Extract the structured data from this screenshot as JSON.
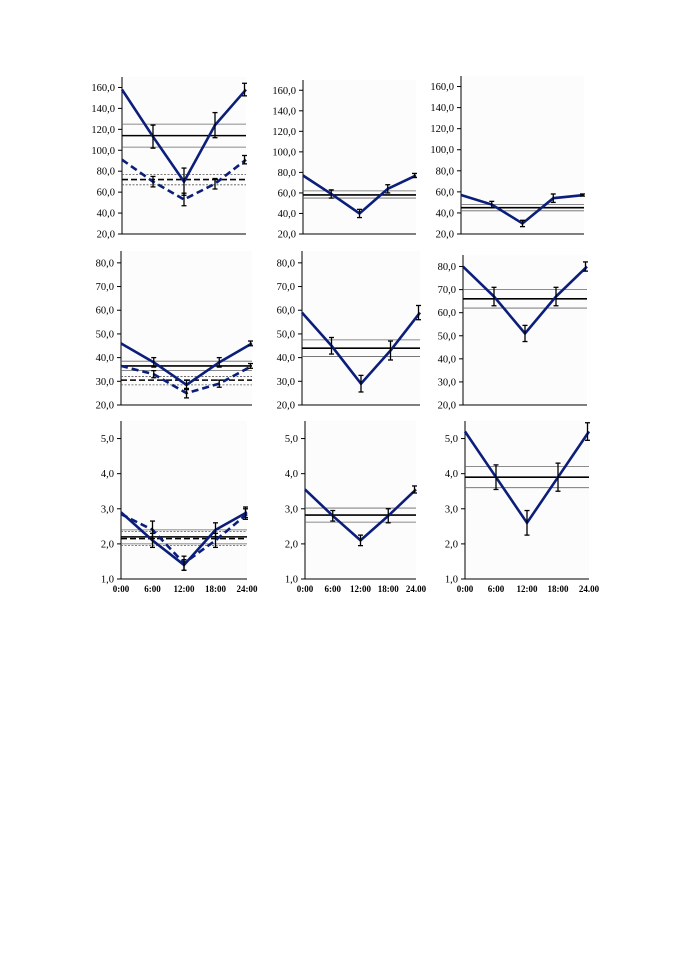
{
  "chart_data": [
    {
      "type": "line",
      "ylim": [
        20,
        170
      ],
      "yticks": [
        "20,0",
        "40,0",
        "60,0",
        "80,0",
        "100,0",
        "120,0",
        "140,0",
        "160,0"
      ],
      "x": [
        "0:00",
        "6:00",
        "12:00",
        "18:00",
        "24:00"
      ],
      "show_xticks": false,
      "series": [
        {
          "style": "solid",
          "values": [
            158,
            113,
            70,
            124,
            158
          ],
          "err": [
            0,
            11,
            13,
            12,
            6
          ]
        },
        {
          "style": "dashed",
          "values": [
            91,
            70,
            53,
            68,
            91
          ],
          "err": [
            0,
            5,
            6,
            5,
            4
          ]
        }
      ],
      "mesor": [
        {
          "style": "solid",
          "value": 114,
          "band": [
            103,
            125
          ]
        },
        {
          "style": "dashed",
          "value": 72,
          "band": [
            67,
            77
          ]
        }
      ]
    },
    {
      "type": "line",
      "ylim": [
        20,
        170
      ],
      "yticks": [
        "20,0",
        "40,0",
        "60,0",
        "80,0",
        "100,0",
        "120,0",
        "140,0",
        "160,0"
      ],
      "x": [
        "0:00",
        "6:00",
        "12:00",
        "18:00",
        "24:00"
      ],
      "show_xticks": false,
      "series": [
        {
          "style": "solid",
          "values": [
            77,
            59,
            40,
            64,
            77
          ],
          "err": [
            0,
            4,
            4,
            4,
            2
          ]
        }
      ],
      "mesor": [
        {
          "style": "solid",
          "value": 58,
          "band": [
            55,
            62
          ]
        }
      ]
    },
    {
      "type": "line",
      "ylim": [
        20,
        170
      ],
      "yticks": [
        "20,0",
        "40,0",
        "60,0",
        "80,0",
        "100,0",
        "120,0",
        "140,0",
        "160,0"
      ],
      "x": [
        "0:00",
        "6:00",
        "12:00",
        "18:00",
        "24:00"
      ],
      "show_xticks": false,
      "series": [
        {
          "style": "solid",
          "values": [
            57,
            48,
            30,
            54,
            57
          ],
          "err": [
            0,
            3,
            3,
            4,
            1
          ]
        }
      ],
      "mesor": [
        {
          "style": "solid",
          "value": 45,
          "band": [
            42,
            48
          ]
        }
      ]
    },
    {
      "type": "line",
      "ylim": [
        20,
        85
      ],
      "yticks": [
        "20,0",
        "30,0",
        "40,0",
        "50,0",
        "60,0",
        "70,0",
        "80,0"
      ],
      "x": [
        "0:00",
        "6:00",
        "12:00",
        "18:00",
        "24:00"
      ],
      "show_xticks": false,
      "series": [
        {
          "style": "solid",
          "values": [
            46,
            38,
            28.5,
            38,
            46
          ],
          "err": [
            0,
            2,
            2,
            2,
            1
          ]
        },
        {
          "style": "dashed",
          "values": [
            36.5,
            33,
            25,
            29,
            36.5
          ],
          "err": [
            0,
            1.5,
            2,
            1.5,
            1
          ]
        }
      ],
      "mesor": [
        {
          "style": "solid",
          "value": 36.5,
          "band": [
            34.5,
            38.5
          ]
        },
        {
          "style": "dashed",
          "value": 30.5,
          "band": [
            28.5,
            32
          ]
        }
      ]
    },
    {
      "type": "line",
      "ylim": [
        20,
        85
      ],
      "yticks": [
        "20,0",
        "30,0",
        "40,0",
        "50,0",
        "60,0",
        "70,0",
        "80,0"
      ],
      "x": [
        "0:00",
        "6:00",
        "12:00",
        "18:00",
        "24:00"
      ],
      "show_xticks": false,
      "series": [
        {
          "style": "solid",
          "values": [
            59,
            45,
            29,
            43,
            59
          ],
          "err": [
            0,
            3.5,
            3.5,
            4,
            3
          ]
        }
      ],
      "mesor": [
        {
          "style": "solid",
          "value": 44,
          "band": [
            40.5,
            47.5
          ]
        }
      ]
    },
    {
      "type": "line",
      "ylim": [
        20,
        85
      ],
      "yticks": [
        "20,0",
        "30,0",
        "40,0",
        "50,0",
        "60,0",
        "70,0",
        "80,0"
      ],
      "x": [
        "0:00",
        "6:00",
        "12:00",
        "18:00",
        "24:00"
      ],
      "show_xticks": false,
      "series": [
        {
          "style": "solid",
          "values": [
            80,
            67,
            51,
            67,
            80
          ],
          "err": [
            0,
            4,
            3.5,
            4,
            2
          ]
        }
      ],
      "mesor": [
        {
          "style": "solid",
          "value": 66,
          "band": [
            62,
            70
          ]
        }
      ]
    },
    {
      "type": "line",
      "ylim": [
        1,
        5.5
      ],
      "yticks": [
        "1,0",
        "2,0",
        "3,0",
        "4,0",
        "5,0"
      ],
      "x": [
        "0:00",
        "6:00",
        "12:00",
        "18:00",
        "24:00"
      ],
      "show_xticks": true,
      "series": [
        {
          "style": "solid",
          "values": [
            2.9,
            2.1,
            1.4,
            2.4,
            2.9
          ],
          "err": [
            0,
            0.2,
            0.15,
            0.2,
            0.15
          ]
        },
        {
          "style": "dashed",
          "values": [
            2.85,
            2.4,
            1.45,
            2.1,
            2.85
          ],
          "err": [
            0,
            0.25,
            0.2,
            0.2,
            0.15
          ]
        }
      ],
      "mesor": [
        {
          "style": "solid",
          "value": 2.2,
          "band": [
            2.0,
            2.4
          ]
        },
        {
          "style": "dashed",
          "value": 2.15,
          "band": [
            1.95,
            2.35
          ]
        }
      ]
    },
    {
      "type": "line",
      "ylim": [
        1,
        5.5
      ],
      "yticks": [
        "1,0",
        "2,0",
        "3,0",
        "4,0",
        "5,0"
      ],
      "x": [
        "0:00",
        "6:00",
        "12:00",
        "18:00",
        "24.00"
      ],
      "show_xticks": true,
      "series": [
        {
          "style": "solid",
          "values": [
            3.55,
            2.8,
            2.1,
            2.8,
            3.55
          ],
          "err": [
            0,
            0.15,
            0.15,
            0.2,
            0.1
          ]
        }
      ],
      "mesor": [
        {
          "style": "solid",
          "value": 2.82,
          "band": [
            2.62,
            3.02
          ]
        }
      ]
    },
    {
      "type": "line",
      "ylim": [
        1,
        5.5
      ],
      "yticks": [
        "1,0",
        "2,0",
        "3,0",
        "4,0",
        "5,0"
      ],
      "x": [
        "0:00",
        "6:00",
        "12:00",
        "18:00",
        "24.00"
      ],
      "show_xticks": true,
      "series": [
        {
          "style": "solid",
          "values": [
            5.2,
            3.9,
            2.6,
            3.9,
            5.2
          ],
          "err": [
            0,
            0.35,
            0.35,
            0.4,
            0.25
          ]
        }
      ],
      "mesor": [
        {
          "style": "solid",
          "value": 3.9,
          "band": [
            3.6,
            4.2
          ]
        }
      ]
    }
  ]
}
